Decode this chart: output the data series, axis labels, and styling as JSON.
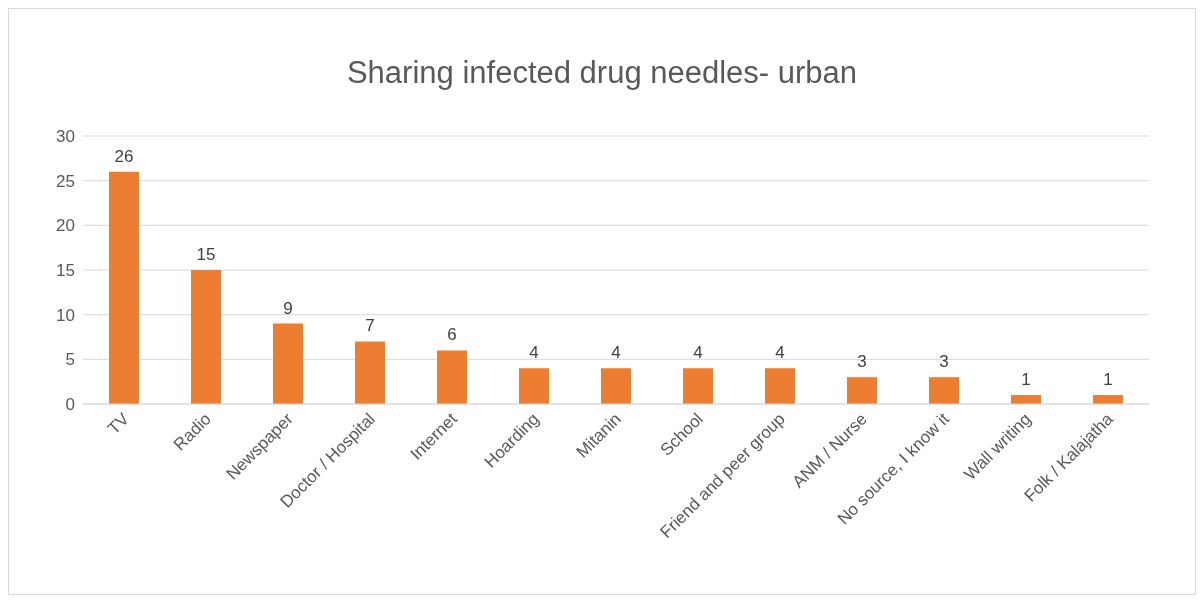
{
  "chart_data": {
    "type": "bar",
    "title": "Sharing infected drug needles- urban",
    "categories": [
      "TV",
      "Radio",
      "Newspaper",
      "Doctor / Hospital",
      "Internet",
      "Hoarding",
      "Mitanin",
      "School",
      "Friend and peer group",
      "ANM / Nurse",
      "No source, I know it",
      "Wall writing",
      "Folk / Kalajatha"
    ],
    "values": [
      26,
      15,
      9,
      7,
      6,
      4,
      4,
      4,
      4,
      3,
      3,
      1,
      1
    ],
    "color": "#ed7d31",
    "ylim": [
      0,
      30
    ],
    "yticks": [
      0,
      5,
      10,
      15,
      20,
      25,
      30
    ],
    "grid": "y",
    "data_labels": true
  }
}
